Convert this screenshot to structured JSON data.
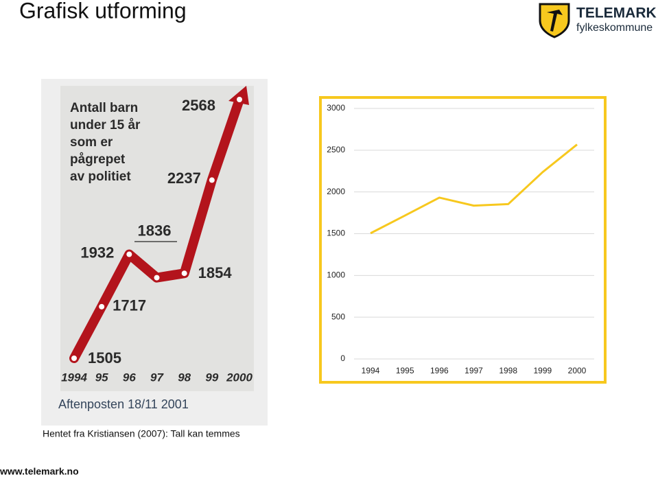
{
  "title": "Grafisk utforming",
  "logo": {
    "name": "TELEMARK",
    "sub": "fylkeskommune"
  },
  "chart_data": [
    {
      "type": "line",
      "title": [
        "Antall barn",
        "under 15 år",
        "som er",
        "pågrepet",
        "av politiet"
      ],
      "categories": [
        "1994",
        "95",
        "96",
        "97",
        "98",
        "99",
        "2000"
      ],
      "values": [
        1505,
        1717,
        1932,
        1836,
        1854,
        2237,
        2568
      ],
      "color": "#b3141c",
      "source": "Aftenposten 18/11 2001"
    },
    {
      "type": "line",
      "categories": [
        "1994",
        "1995",
        "1996",
        "1997",
        "1998",
        "1999",
        "2000"
      ],
      "values": [
        1505,
        1717,
        1932,
        1836,
        1854,
        2237,
        2568
      ],
      "color": "#f7c81e",
      "ylim": [
        0,
        3000
      ],
      "yticks": [
        0,
        500,
        1000,
        1500,
        2000,
        2500,
        3000
      ],
      "grid": true
    }
  ],
  "caption": "Hentet fra Kristiansen (2007): Tall kan temmes",
  "footer": "www.telemark.no"
}
